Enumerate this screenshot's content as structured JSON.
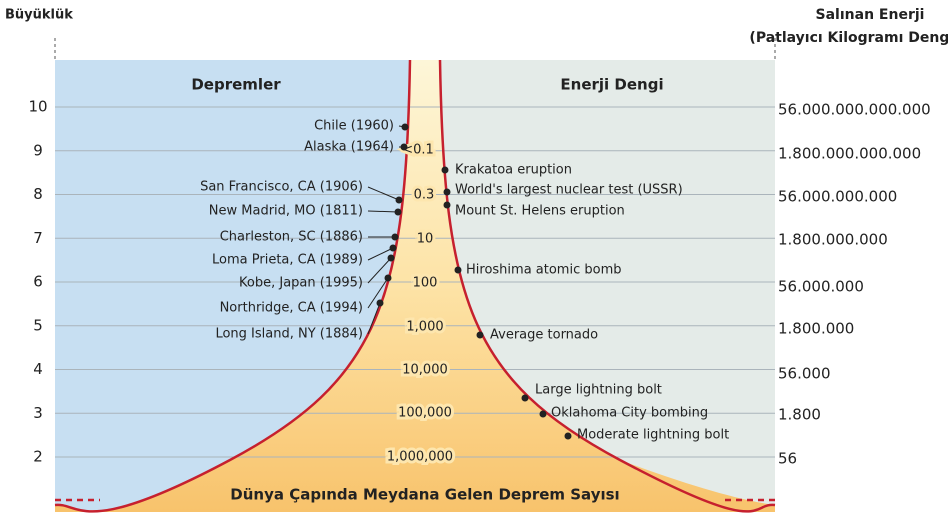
{
  "header": {
    "left_title": "Büyüklük",
    "right_title": "Salınan Enerji",
    "right_subtitle": "(Patlayıcı Kilogramı Dengi)"
  },
  "sections": {
    "left": "Depremler",
    "right": "Enerji Dengi"
  },
  "magnitudes": [
    "10",
    "9",
    "8",
    "7",
    "6",
    "5",
    "4",
    "3",
    "2"
  ],
  "energies": [
    "56.000.000.000.000",
    "1.800.000.000.000",
    "56.000.000.000",
    "1.800.000.000",
    "56.000.000",
    "1.800.000",
    "56.000",
    "1.800",
    "56"
  ],
  "counts": [
    "<0.1",
    "0.3",
    "10",
    "100",
    "1,000",
    "10,000",
    "100,000",
    "1,000,000"
  ],
  "earthquakes": [
    "Chile (1960)",
    "Alaska (1964)",
    "San Francisco, CA (1906)",
    "New Madrid, MO (1811)",
    "Charleston, SC (1886)",
    "Loma Prieta, CA (1989)",
    "Kobe, Japan (1995)",
    "Northridge, CA (1994)",
    "Long Island, NY (1884)"
  ],
  "energy_events": [
    "Krakatoa eruption",
    "World's largest nuclear test (USSR)",
    "Mount St. Helens eruption",
    "Hiroshima atomic bomb",
    "Average tornado",
    "Large lightning bolt",
    "Oklahoma City bombing",
    "Moderate lightning bolt"
  ],
  "footer": "Dünya Çapında Meydana Gelen Deprem Sayısı"
}
